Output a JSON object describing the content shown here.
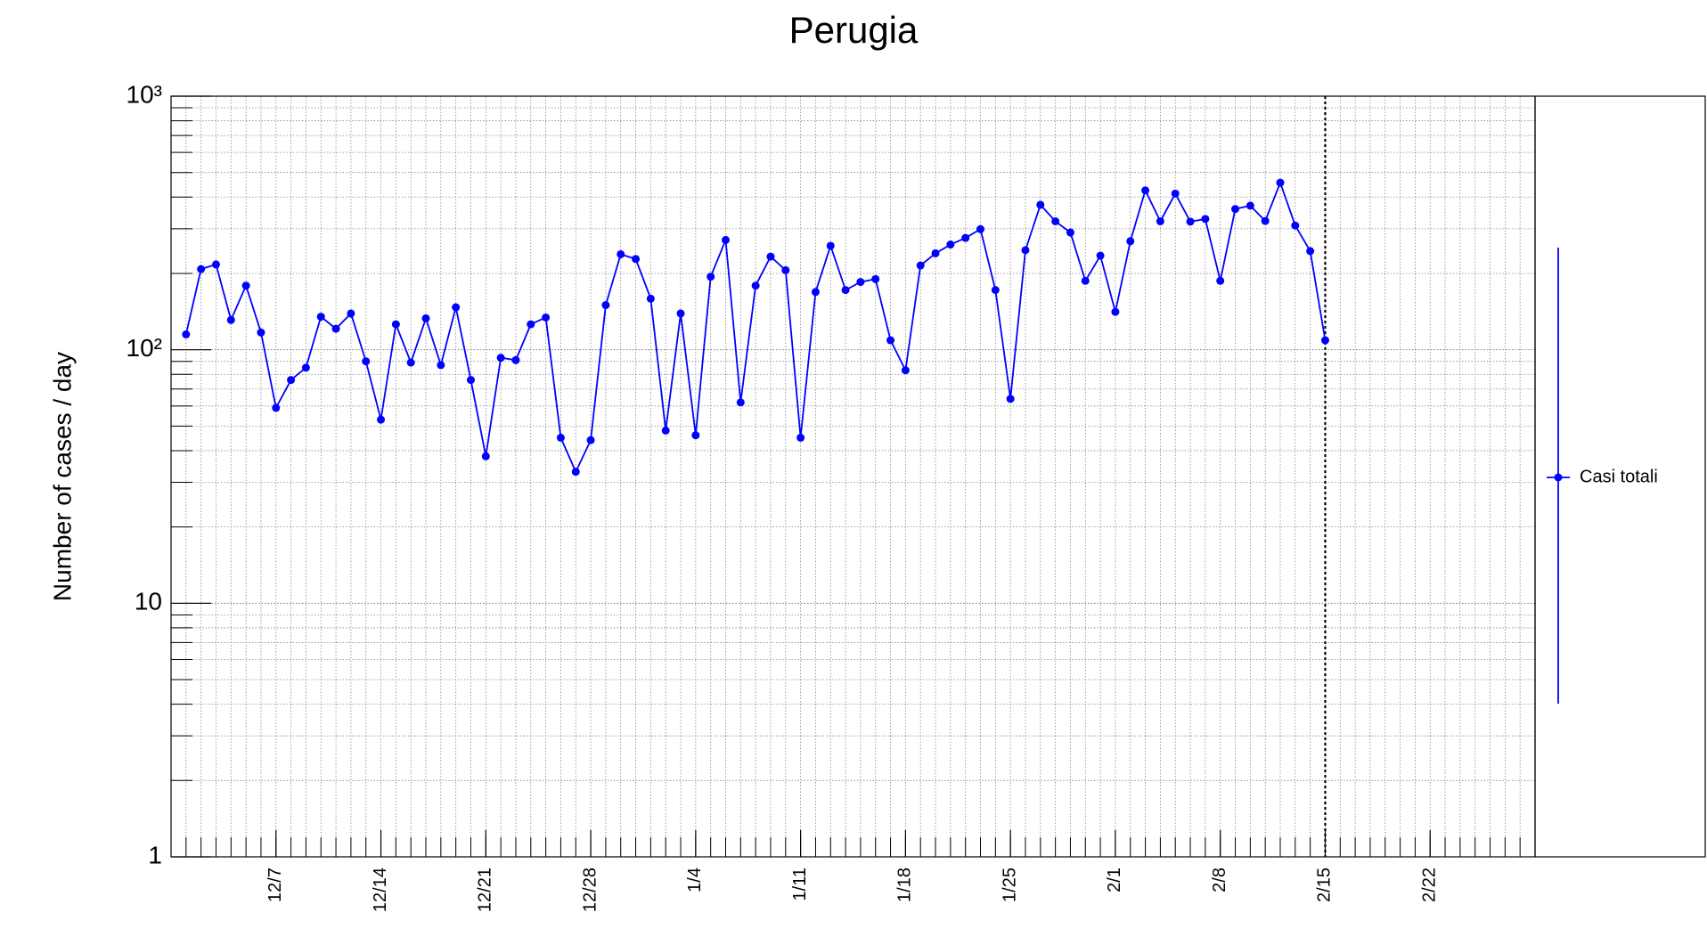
{
  "chart_data": {
    "type": "line",
    "title": "Perugia",
    "y_label": "Number of cases / day",
    "x": [
      "12/1",
      "12/2",
      "12/3",
      "12/4",
      "12/5",
      "12/6",
      "12/7",
      "12/8",
      "12/9",
      "12/10",
      "12/11",
      "12/12",
      "12/13",
      "12/14",
      "12/15",
      "12/16",
      "12/17",
      "12/18",
      "12/19",
      "12/20",
      "12/21",
      "12/22",
      "12/23",
      "12/24",
      "12/25",
      "12/26",
      "12/27",
      "12/28",
      "12/29",
      "12/30",
      "12/31",
      "1/1",
      "1/2",
      "1/3",
      "1/4",
      "1/5",
      "1/6",
      "1/7",
      "1/8",
      "1/9",
      "1/10",
      "1/11",
      "1/12",
      "1/13",
      "1/14",
      "1/15",
      "1/16",
      "1/17",
      "1/18",
      "1/19",
      "1/20",
      "1/21",
      "1/22",
      "1/23",
      "1/24",
      "1/25",
      "1/26",
      "1/27",
      "1/28",
      "1/29",
      "1/30",
      "1/31",
      "2/1",
      "2/2",
      "2/3",
      "2/4",
      "2/5",
      "2/6",
      "2/7",
      "2/8",
      "2/9",
      "2/10",
      "2/11",
      "2/12",
      "2/13",
      "2/14",
      "2/15"
    ],
    "series": [
      {
        "name": "Casi totali",
        "color": "#0000ff",
        "values": [
          115,
          208,
          217,
          131,
          179,
          117,
          59,
          76,
          85,
          135,
          121,
          139,
          90,
          53,
          126,
          89,
          133,
          87,
          147,
          76,
          38,
          93,
          91,
          126,
          134,
          45,
          33,
          44,
          150,
          238,
          228,
          159,
          48,
          139,
          46,
          194,
          271,
          62,
          179,
          233,
          206,
          45,
          169,
          257,
          172,
          185,
          190,
          109,
          83,
          215,
          240,
          260,
          276,
          299,
          172,
          64,
          247,
          373,
          321,
          290,
          187,
          235,
          141,
          268,
          425,
          321,
          413,
          320,
          328,
          187,
          359,
          370,
          322,
          456,
          309,
          245,
          109
        ]
      }
    ],
    "xlim": [
      "11/30",
      "3/1"
    ],
    "xticks": [
      "12/7",
      "12/14",
      "12/21",
      "12/28",
      "1/4",
      "1/11",
      "1/18",
      "1/25",
      "2/1",
      "2/8",
      "2/15",
      "2/22"
    ],
    "ylim": [
      1,
      1000
    ],
    "log_y": true,
    "yticks": [
      1,
      10,
      {
        "value": 100,
        "label": "10²"
      },
      {
        "value": 1000,
        "label": "10³"
      }
    ],
    "grid": true,
    "minor_grid": true,
    "vline": "2/15",
    "legend": "right"
  }
}
